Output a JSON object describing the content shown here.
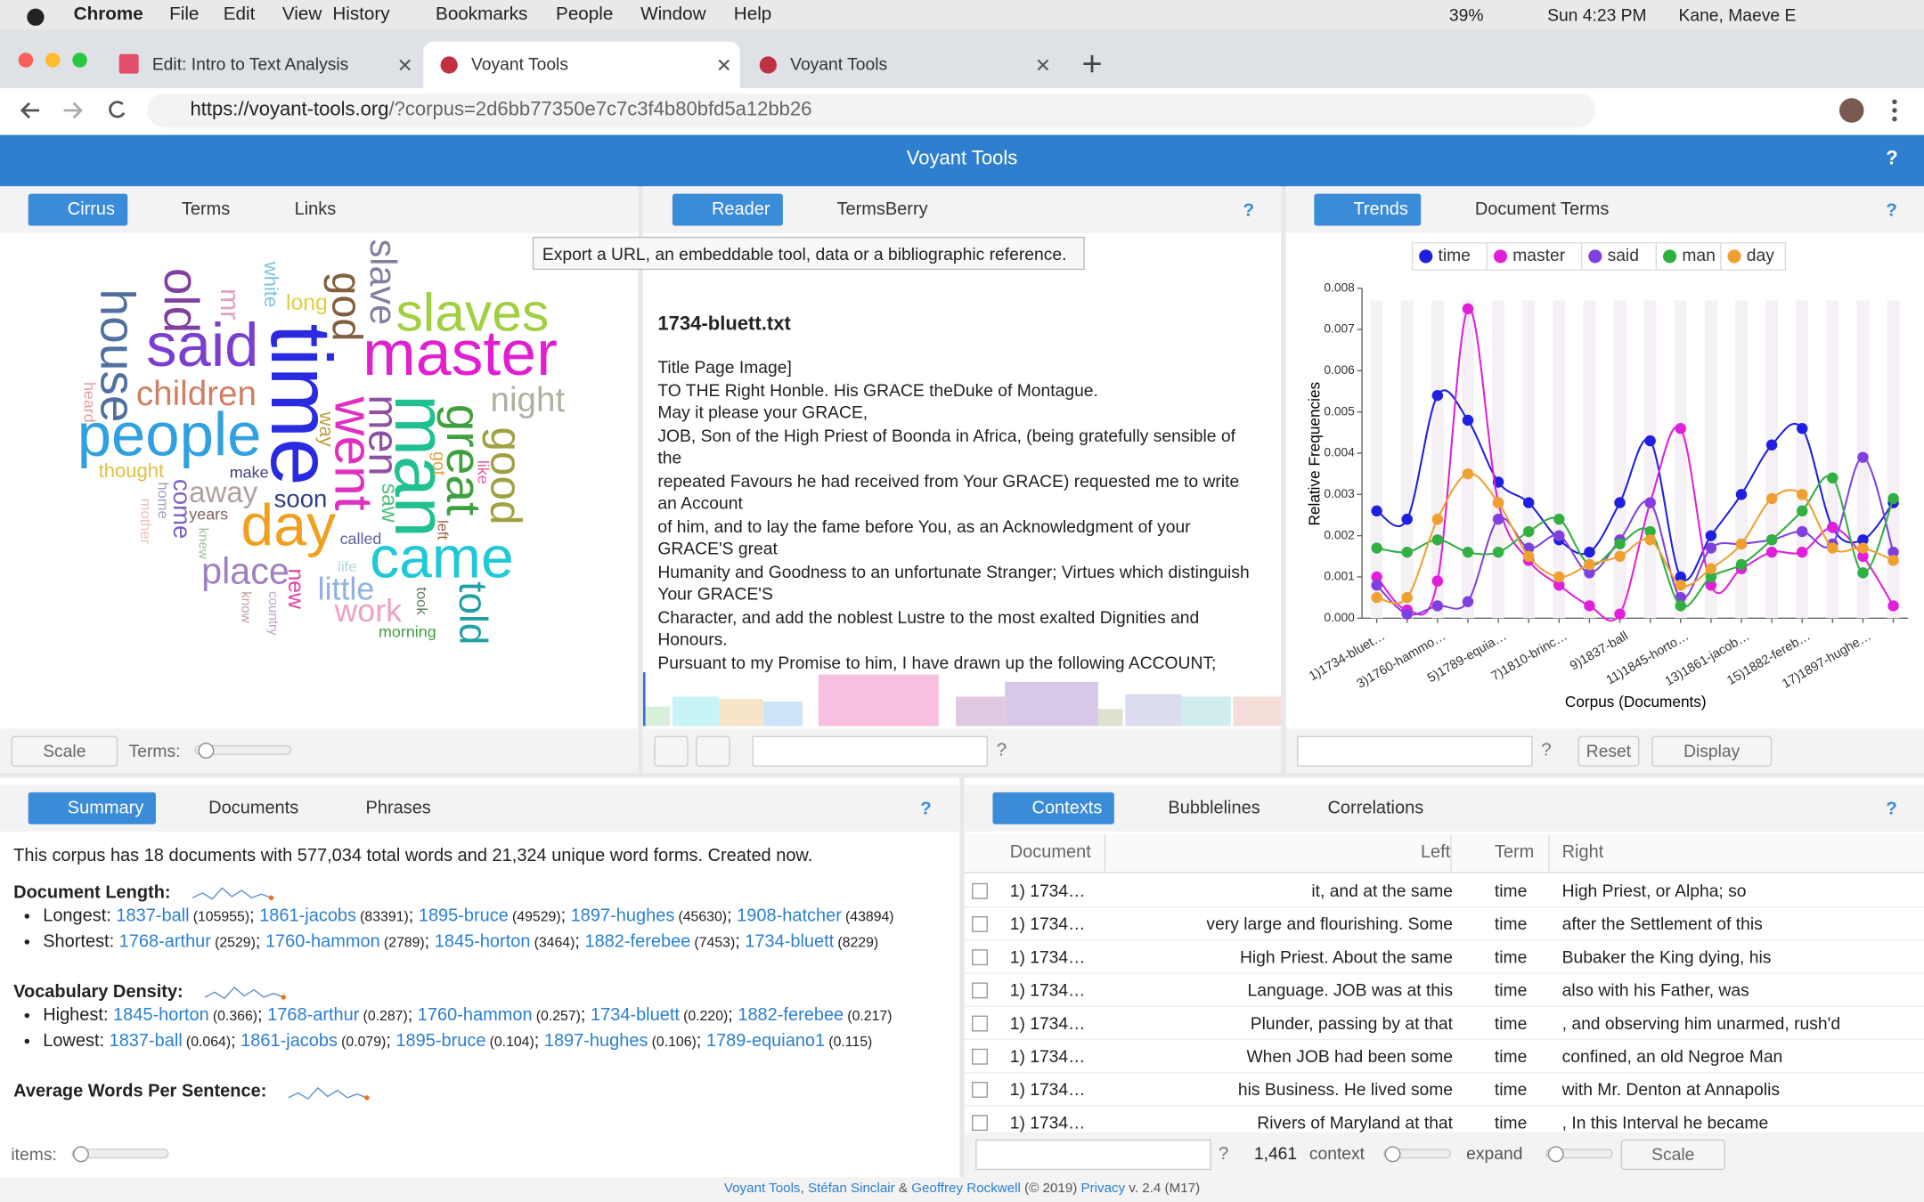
{
  "menubar": {
    "app": "Chrome",
    "items": [
      "File",
      "Edit",
      "View",
      "History",
      "Bookmarks",
      "People",
      "Window",
      "Help"
    ],
    "battery": "39%",
    "clock": "Sun 4:23 PM",
    "user": "Kane, Maeve E"
  },
  "tabs": [
    "Edit: Intro to Text Analysis",
    "Voyant Tools",
    "Voyant Tools"
  ],
  "address": {
    "host": "https://voyant-tools.org",
    "path": "/?corpus=2d6bb77350e7c7c3f4b80bfd5a12bb26"
  },
  "help": "?",
  "header": {
    "title": "Voyant Tools"
  },
  "cirrus": {
    "tabs": [
      "Cirrus",
      "Terms",
      "Links"
    ],
    "scale": "Scale",
    "terms_label": "Terms:",
    "words": [
      "time",
      "master",
      "said",
      "people",
      "man",
      "came",
      "day",
      "slaves",
      "went",
      "house",
      "old",
      "children",
      "great",
      "good",
      "night",
      "god",
      "men",
      "slave",
      "told",
      "place",
      "little",
      "work",
      "away",
      "soon",
      "come",
      "thought",
      "long",
      "mr",
      "white",
      "saw",
      "new",
      "called",
      "years",
      "make",
      "morning",
      "heard",
      "home",
      "mother",
      "knew",
      "know",
      "country",
      "life",
      "took",
      "left",
      "got",
      "like",
      "way"
    ]
  },
  "reader": {
    "tabs": [
      "Reader",
      "TermsBerry"
    ],
    "tooltip": "Export a URL, an embeddable tool, data or a bibliographic reference.",
    "doc_title": "1734-bluett.txt",
    "lines": [
      "Title Page Image]",
      "TO THE Right Honble. His GRACE theDuke of Montague.",
      "May it please your GRACE,",
      "JOB, Son of the High Priest of Boonda in Africa, (being gratefully sensible of",
      "the",
      "repeated Favours he had received from Your GRACE) requested me to write",
      "an Account",
      "of him, and to lay the fame before You, as an Acknowledgment of your",
      "GRACE'S great",
      "Humanity and Goodness to an unfortunate Stranger; Virtues which distinguish",
      "Your GRACE'S",
      "Character, and add the noblest Lustre to the most exalted Dignities and",
      "Honours.",
      "Pursuant to my Promise to him, I have drawn up the following ACCOUNT;"
    ]
  },
  "trends": {
    "tabs": [
      "Trends",
      "Document Terms"
    ],
    "reset": "Reset",
    "display": "Display"
  },
  "chart_data": {
    "type": "line",
    "xlabel": "Corpus (Documents)",
    "ylabel": "Relative Frequencies",
    "categories": [
      "1)1734-bluet…",
      null,
      "3)1760-hammo…",
      null,
      "5)1789-equia…",
      null,
      "7)1810-brinc…",
      null,
      "9)1837-ball",
      null,
      "11)1845-horto…",
      null,
      "13)1861-jacob…",
      null,
      "15)1882-fereb…",
      null,
      "17)1897-hughe…",
      null
    ],
    "ylim": [
      0,
      0.008
    ],
    "yticks": [
      {
        "value": 0,
        "label": "0.000"
      },
      {
        "value": 0.001,
        "label": "0.001"
      },
      {
        "value": 0.002,
        "label": "0.002"
      },
      {
        "value": 0.003,
        "label": "0.003"
      },
      {
        "value": 0.004,
        "label": "0.004"
      },
      {
        "value": 0.005,
        "label": "0.005"
      },
      {
        "value": 0.006,
        "label": "0.006"
      },
      {
        "value": 0.007,
        "label": "0.007"
      },
      {
        "value": 0.008,
        "label": "0.008"
      }
    ],
    "series": [
      {
        "name": "time",
        "color": "#1f1fe0",
        "values": [
          0.0026,
          0.0024,
          0.0054,
          0.0048,
          0.0033,
          0.0028,
          0.0019,
          0.0016,
          0.0028,
          0.0043,
          0.001,
          0.002,
          0.003,
          0.0042,
          0.0046,
          0.0022,
          0.0019,
          0.0028
        ]
      },
      {
        "name": "master",
        "color": "#e020d8",
        "values": [
          0.001,
          0.0002,
          0.0009,
          0.0075,
          0.0028,
          0.0014,
          0.0008,
          0.0003,
          0.0001,
          0.0028,
          0.0046,
          0.0008,
          0.0012,
          0.0016,
          0.0016,
          0.0022,
          0.0015,
          0.0003
        ]
      },
      {
        "name": "said",
        "color": "#8040e0",
        "values": [
          0.0008,
          0.0001,
          0.0003,
          0.0004,
          0.0024,
          0.0017,
          0.002,
          0.0011,
          0.0019,
          0.0028,
          0.0005,
          0.0017,
          0.0018,
          0.0019,
          0.0021,
          0.0018,
          0.0039,
          0.0016
        ]
      },
      {
        "name": "man",
        "color": "#30b040",
        "values": [
          0.0017,
          0.0016,
          0.0019,
          0.0016,
          0.0016,
          0.0021,
          0.0024,
          0.0013,
          0.0018,
          0.0021,
          0.0003,
          0.001,
          0.0013,
          0.0019,
          0.0026,
          0.0034,
          0.0011,
          0.0029
        ]
      },
      {
        "name": "day",
        "color": "#f0a030",
        "values": [
          0.0005,
          0.0005,
          0.0024,
          0.0035,
          0.0028,
          0.0015,
          0.001,
          0.0013,
          0.0015,
          0.0019,
          0.0008,
          0.0012,
          0.0018,
          0.0029,
          0.003,
          0.0017,
          0.0017,
          0.0014
        ]
      }
    ]
  },
  "summary": {
    "tabs": [
      "Summary",
      "Documents",
      "Phrases"
    ],
    "intro": "This corpus has 18 documents with 577,034 total words and 21,324 unique word forms. Created now.",
    "sep": ";",
    "items": "items:",
    "sections": [
      {
        "title": "Document Length:",
        "rows": [
          {
            "label": "Longest:",
            "entries": [
              [
                "1837-ball",
                "(105955)"
              ],
              [
                "1861-jacobs",
                "(83391)"
              ],
              [
                "1895-bruce",
                "(49529)"
              ],
              [
                "1897-hughes",
                "(45630)"
              ],
              [
                "1908-hatcher",
                "(43894)"
              ]
            ]
          },
          {
            "label": "Shortest:",
            "entries": [
              [
                "1768-arthur",
                "(2529)"
              ],
              [
                "1760-hammon",
                "(2789)"
              ],
              [
                "1845-horton",
                "(3464)"
              ],
              [
                "1882-ferebee",
                "(7453)"
              ],
              [
                "1734-bluett",
                "(8229)"
              ]
            ]
          }
        ]
      },
      {
        "title": "Vocabulary Density:",
        "rows": [
          {
            "label": "Highest:",
            "entries": [
              [
                "1845-horton",
                "(0.366)"
              ],
              [
                "1768-arthur",
                "(0.287)"
              ],
              [
                "1760-hammon",
                "(0.257)"
              ],
              [
                "1734-bluett",
                "(0.220)"
              ],
              [
                "1882-ferebee",
                "(0.217)"
              ]
            ]
          },
          {
            "label": "Lowest:",
            "entries": [
              [
                "1837-ball",
                "(0.064)"
              ],
              [
                "1861-jacobs",
                "(0.079)"
              ],
              [
                "1895-bruce",
                "(0.104)"
              ],
              [
                "1897-hughes",
                "(0.106)"
              ],
              [
                "1789-equiano1",
                "(0.115)"
              ]
            ]
          }
        ]
      },
      {
        "title": "Average Words Per Sentence:",
        "rows": []
      }
    ]
  },
  "contexts": {
    "tabs": [
      "Contexts",
      "Bubblelines",
      "Correlations"
    ],
    "columns": [
      "Document",
      "Left",
      "Term",
      "Right"
    ],
    "rows": [
      [
        "1) 1734…",
        "it, and at the same",
        "time",
        "High Priest, or Alpha; so"
      ],
      [
        "1) 1734…",
        "very large and flourishing. Some",
        "time",
        "after the Settlement of this"
      ],
      [
        "1) 1734…",
        "High Priest. About the same",
        "time",
        "Bubaker the King dying, his"
      ],
      [
        "1) 1734…",
        "Language. JOB was at this",
        "time",
        "also with his Father, was"
      ],
      [
        "1) 1734…",
        "Plunder, passing by at that",
        "time",
        ", and observing him unarmed, rush'd"
      ],
      [
        "1) 1734…",
        "When JOB had been some",
        "time",
        "confined, an old Negroe Man"
      ],
      [
        "1) 1734…",
        "his Business. He lived some",
        "time",
        "with Mr. Denton at Annapolis"
      ],
      [
        "1) 1734…",
        "Rivers of Maryland at that",
        "time",
        ", In this Interval he became"
      ]
    ],
    "count": "1,461",
    "context": "context",
    "expand": "expand",
    "scale": "Scale"
  },
  "footer": [
    "Voyant Tools",
    ", ",
    "Stéfan Sinclair",
    " & ",
    "Geoffrey Rockwell",
    " (© 2019) ",
    "Privacy",
    " v. 2.4 (M17)"
  ]
}
